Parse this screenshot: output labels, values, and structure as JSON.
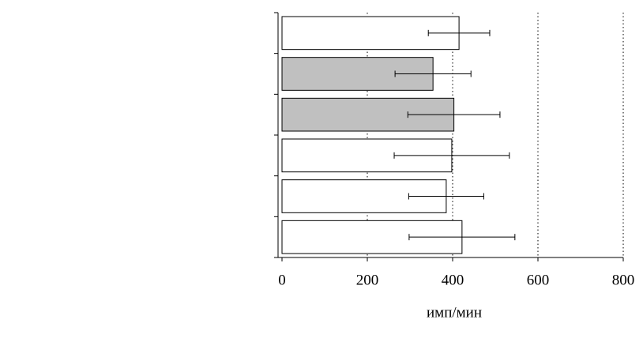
{
  "chart_data": {
    "type": "bar",
    "orientation": "horizontal",
    "categories": [
      null,
      null,
      null,
      null,
      null,
      null
    ],
    "values": [
      415,
      354,
      403,
      398,
      385,
      422
    ],
    "errors": [
      72,
      89,
      108,
      135,
      88,
      124
    ],
    "colors": [
      "#ffffff",
      "#c0c0c0",
      "#c0c0c0",
      "#ffffff",
      "#ffffff",
      "#ffffff"
    ],
    "xlim": [
      0,
      800
    ],
    "xticks": [
      0,
      200,
      400,
      600,
      800
    ],
    "xlabel": "имп/мин",
    "grid": true
  }
}
